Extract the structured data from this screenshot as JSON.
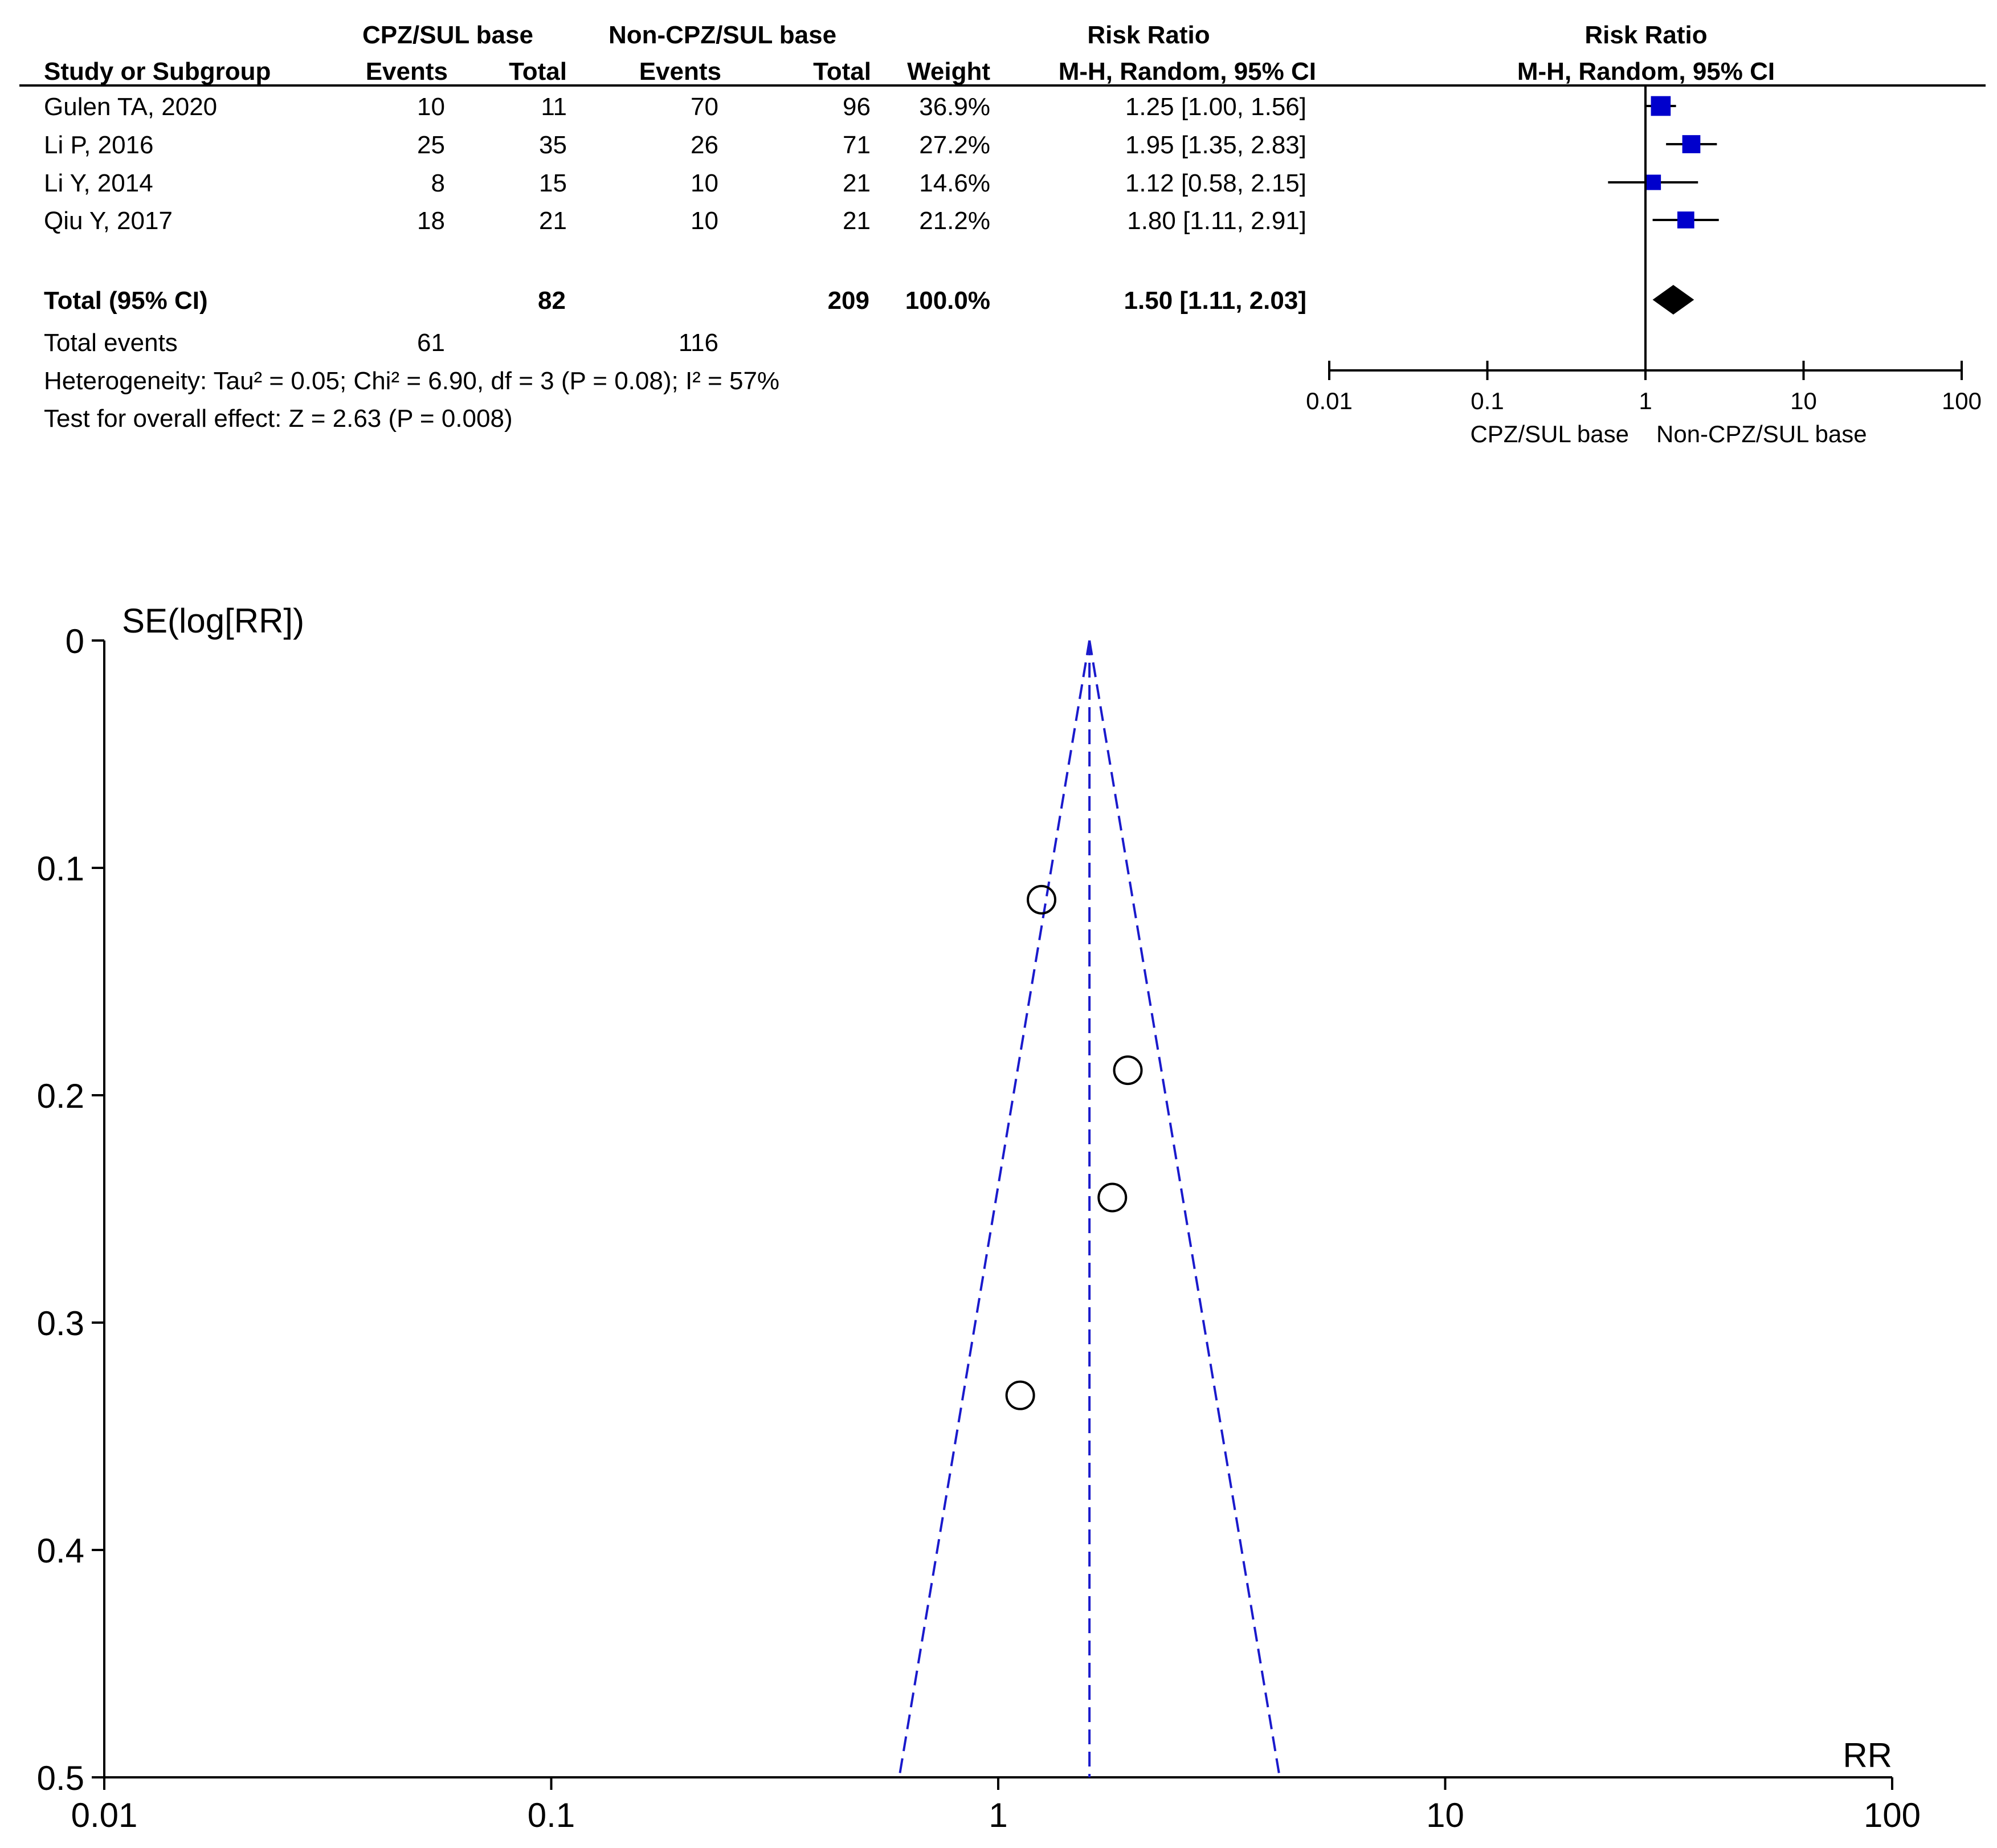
{
  "chart_data": [
    {
      "type": "table",
      "subtype": "forest-plot",
      "column_groups": [
        {
          "key": "exp",
          "label": "CPZ/SUL base"
        },
        {
          "key": "ctl",
          "label": "Non-CPZ/SUL base"
        },
        {
          "key": "rr_text",
          "label": "Risk Ratio"
        },
        {
          "key": "rr_plot",
          "label": "Risk Ratio"
        }
      ],
      "columns": {
        "study": "Study or Subgroup",
        "exp_events": "Events",
        "exp_total": "Total",
        "ctl_events": "Events",
        "ctl_total": "Total",
        "weight": "Weight",
        "ci_text": "M-H, Random, 95% CI",
        "ci_plot": "M-H, Random, 95% CI"
      },
      "rows": [
        {
          "study": "Gulen TA, 2020",
          "exp_events": "10",
          "exp_total": "11",
          "ctl_events": "70",
          "ctl_total": "96",
          "weight": "36.9%",
          "ci_text": "1.25 [1.00, 1.56]",
          "rr": 1.25,
          "lo": 1.0,
          "hi": 1.56,
          "w": 36.9
        },
        {
          "study": "Li P, 2016",
          "exp_events": "25",
          "exp_total": "35",
          "ctl_events": "26",
          "ctl_total": "71",
          "weight": "27.2%",
          "ci_text": "1.95 [1.35, 2.83]",
          "rr": 1.95,
          "lo": 1.35,
          "hi": 2.83,
          "w": 27.2
        },
        {
          "study": "Li Y, 2014",
          "exp_events": "8",
          "exp_total": "15",
          "ctl_events": "10",
          "ctl_total": "21",
          "weight": "14.6%",
          "ci_text": "1.12 [0.58, 2.15]",
          "rr": 1.12,
          "lo": 0.58,
          "hi": 2.15,
          "w": 14.6
        },
        {
          "study": "Qiu Y, 2017",
          "exp_events": "18",
          "exp_total": "21",
          "ctl_events": "10",
          "ctl_total": "21",
          "weight": "21.2%",
          "ci_text": "1.80 [1.11, 2.91]",
          "rr": 1.8,
          "lo": 1.11,
          "hi": 2.91,
          "w": 21.2
        }
      ],
      "total": {
        "label": "Total (95% CI)",
        "exp_total": "82",
        "ctl_total": "209",
        "weight": "100.0%",
        "ci_text": "1.50 [1.11, 2.03]",
        "rr": 1.5,
        "lo": 1.11,
        "hi": 2.03
      },
      "total_events": {
        "label": "Total events",
        "exp": "61",
        "ctl": "116"
      },
      "heterogeneity": "Heterogeneity: Tau² = 0.05; Chi² = 6.90, df = 3 (P = 0.08); I² = 57%",
      "overall_effect": "Test for overall effect: Z = 2.63 (P = 0.008)",
      "axis": {
        "scale": "log",
        "range": [
          0.01,
          100
        ],
        "ticks": [
          "0.01",
          "0.1",
          "1",
          "10",
          "100"
        ],
        "tick_values": [
          0.01,
          0.1,
          1,
          10,
          100
        ]
      },
      "favours_left": "CPZ/SUL base",
      "favours_right": "Non-CPZ/SUL base",
      "marker_color": "#0000cc"
    },
    {
      "type": "scatter",
      "subtype": "funnel-plot",
      "xlabel": "RR",
      "ylabel": "SE(log[RR])",
      "x_scale": "log",
      "xlim": [
        0.01,
        100
      ],
      "ylim": [
        0,
        0.5
      ],
      "y_inverted": true,
      "x_ticks": [
        "0.01",
        "0.1",
        "1",
        "10",
        "100"
      ],
      "x_tick_values": [
        0.01,
        0.1,
        1,
        10,
        100
      ],
      "y_ticks": [
        "0",
        "0.1",
        "0.2",
        "0.3",
        "0.4",
        "0.5"
      ],
      "y_tick_values": [
        0,
        0.1,
        0.2,
        0.3,
        0.4,
        0.5
      ],
      "points": [
        {
          "x": 1.25,
          "y": 0.114
        },
        {
          "x": 1.95,
          "y": 0.189
        },
        {
          "x": 1.8,
          "y": 0.245
        },
        {
          "x": 1.12,
          "y": 0.332
        }
      ],
      "pooled_rr": 1.6,
      "funnel_color": "#1a1acc"
    }
  ]
}
